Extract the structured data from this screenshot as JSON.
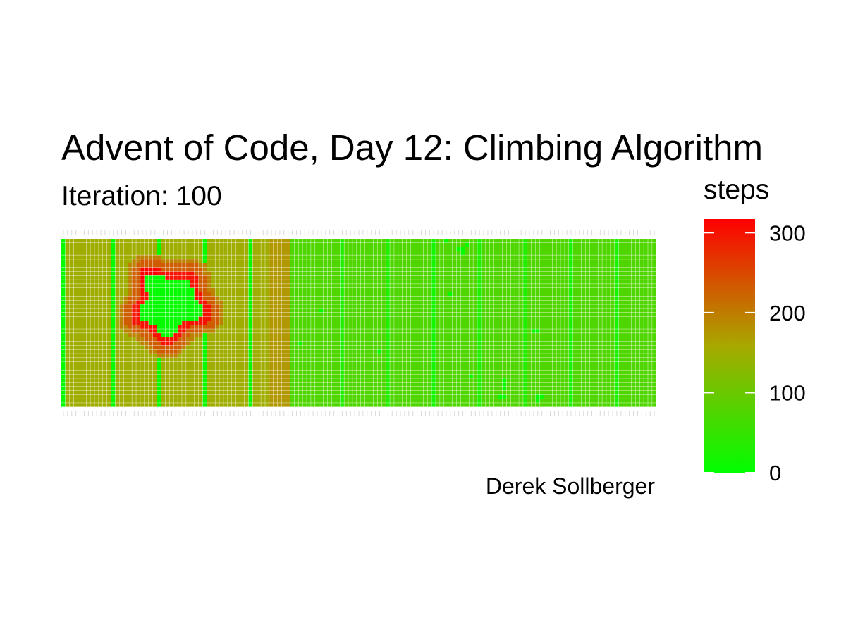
{
  "chart_data": {
    "type": "heatmap",
    "title": "Advent of Code, Day 12: Climbing Algorithm",
    "subtitle": "Iteration: 100",
    "caption": "Derek Sollberger",
    "legend": {
      "title": "steps",
      "breaks": [
        0,
        100,
        200,
        300
      ],
      "break_labels": [
        "0",
        "100",
        "200",
        "300"
      ],
      "limits": [
        0,
        317
      ],
      "low_color": "#00ff00",
      "high_color": "#ff0000",
      "position": "right"
    },
    "grid": {
      "columns": 143,
      "rows": 41,
      "background_steps": 150,
      "column_bands": [
        {
          "from": 0,
          "to": 1,
          "steps": 5
        },
        {
          "from": 1,
          "to": 50,
          "steps": 150
        },
        {
          "from": 50,
          "to": 55,
          "steps": 175
        },
        {
          "from": 55,
          "to": 143,
          "steps": 75
        }
      ],
      "vertical_stripes": [
        {
          "column": 12,
          "steps": 5
        },
        {
          "column": 23,
          "steps": 5
        },
        {
          "column": 34,
          "steps": 5
        },
        {
          "column": 45,
          "steps": 5
        },
        {
          "column": 67,
          "steps": 30
        },
        {
          "column": 78,
          "steps": 30
        },
        {
          "column": 89,
          "steps": 20
        },
        {
          "column": 100,
          "steps": 30
        },
        {
          "column": 111,
          "steps": 30
        },
        {
          "column": 122,
          "steps": 20
        },
        {
          "column": 133,
          "steps": 20
        }
      ],
      "blob": {
        "center_column": 25.5,
        "center_row": 15.5,
        "inner_radius": 7,
        "ring_1_width": 2,
        "ring_2_width": 2,
        "inner_steps": 5,
        "ring_1_steps": 300,
        "ring_2_steps": 230,
        "ring_3_steps": 195,
        "bright_arc_steps": 317
      },
      "scattered_cells": [
        {
          "column": 92,
          "row": 0,
          "steps": 5
        },
        {
          "column": 95,
          "row": 2,
          "steps": 5
        },
        {
          "column": 96,
          "row": 2,
          "steps": 5
        },
        {
          "column": 96,
          "row": 3,
          "steps": 5
        },
        {
          "column": 97,
          "row": 1,
          "steps": 5
        },
        {
          "column": 93,
          "row": 13,
          "steps": 5
        },
        {
          "column": 62,
          "row": 17,
          "steps": 5
        },
        {
          "column": 57,
          "row": 25,
          "steps": 5
        },
        {
          "column": 76,
          "row": 27,
          "steps": 5
        },
        {
          "column": 113,
          "row": 22,
          "steps": 5
        },
        {
          "column": 114,
          "row": 22,
          "steps": 5
        },
        {
          "column": 98,
          "row": 33,
          "steps": 5
        },
        {
          "column": 106,
          "row": 34,
          "steps": 5
        },
        {
          "column": 106,
          "row": 35,
          "steps": 5
        },
        {
          "column": 106,
          "row": 36,
          "steps": 5
        },
        {
          "column": 105,
          "row": 38,
          "steps": 5
        },
        {
          "column": 106,
          "row": 38,
          "steps": 5
        },
        {
          "column": 114,
          "row": 38,
          "steps": 5
        },
        {
          "column": 115,
          "row": 38,
          "steps": 5
        },
        {
          "column": 114,
          "row": 39,
          "steps": 5
        }
      ]
    }
  }
}
